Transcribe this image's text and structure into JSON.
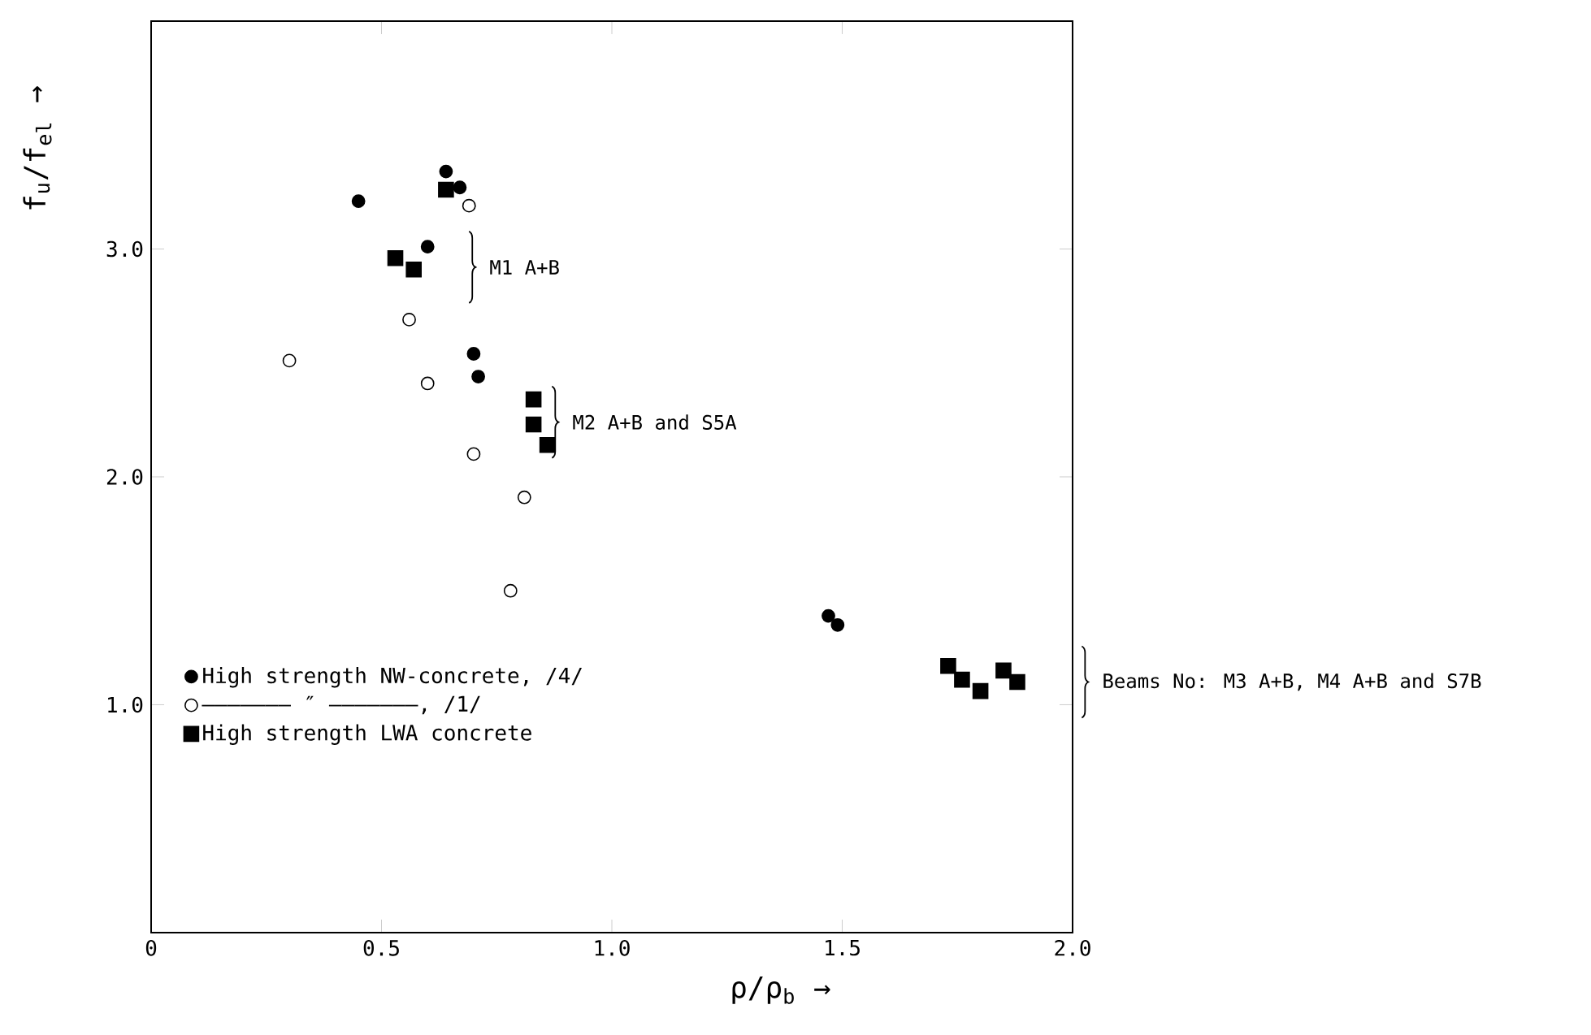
{
  "chart_data": {
    "type": "scatter",
    "xlabel": "ρ/ρ$_{b}$ →",
    "ylabel": "f$_{u}$/f$_{el}$ →",
    "xlim": [
      0,
      2
    ],
    "ylim": [
      0,
      4
    ],
    "xticks": [
      0,
      {
        "value": 0.5,
        "label": "0.5"
      },
      {
        "value": 1,
        "label": "1.0"
      },
      {
        "value": 1.5,
        "label": "1.5"
      },
      {
        "value": 2,
        "label": "2.0"
      }
    ],
    "yticks": [
      {
        "value": 1,
        "label": "1.0"
      },
      {
        "value": 2,
        "label": "2.0"
      },
      {
        "value": 3,
        "label": "3.0"
      }
    ],
    "legend": "bottom left",
    "grid": false,
    "series": [
      {
        "name": "High strength NW-concrete, /4/",
        "color": "#000000",
        "marker": "circle",
        "x": [
          0.45,
          0.64,
          0.67,
          0.6,
          0.7,
          0.71,
          1.47,
          1.49
        ],
        "values": [
          3.21,
          3.34,
          3.27,
          3.01,
          2.54,
          2.44,
          1.39,
          1.35
        ]
      },
      {
        "name": "——————— ″ ———————, /1/",
        "color": "#ffffff",
        "marker": "circle",
        "x": [
          0.69,
          0.56,
          0.3,
          0.6,
          0.7,
          0.81,
          0.78
        ],
        "values": [
          3.19,
          2.69,
          2.51,
          2.41,
          2.1,
          1.91,
          1.5
        ]
      },
      {
        "name": "High strength LWA concrete",
        "color": "#000000",
        "marker": "square",
        "x": [
          0.64,
          0.53,
          0.57,
          0.83,
          0.83,
          0.86,
          1.73,
          1.76,
          1.8,
          1.85,
          1.88
        ],
        "values": [
          3.26,
          2.96,
          2.91,
          2.34,
          2.23,
          2.14,
          1.17,
          1.11,
          1.06,
          1.15,
          1.1
        ]
      }
    ],
    "annotations": [
      "M1 A+B",
      "M2 A+B and S5A",
      "Beams No: M3 A+B, M4 A+B and S7B"
    ]
  }
}
